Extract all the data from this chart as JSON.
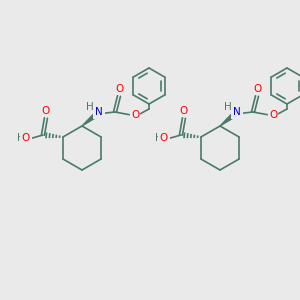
{
  "bg_color": "#eaeaea",
  "bond_color": "#4a7a6a",
  "atom_colors": {
    "O": "#ff0000",
    "N": "#0000cc",
    "H": "#4a7a6a",
    "C": "#4a7a6a"
  },
  "line_width": 1.2,
  "font_size": 7.5
}
